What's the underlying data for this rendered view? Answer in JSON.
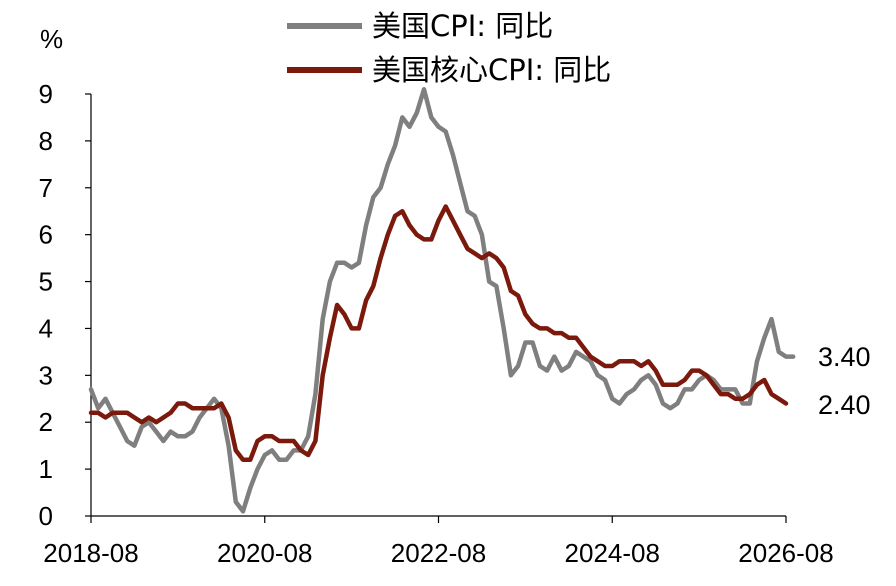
{
  "chart_data": {
    "type": "line",
    "ylabel": "%",
    "ylim": [
      0,
      9
    ],
    "yticks": [
      0,
      1,
      2,
      3,
      4,
      5,
      6,
      7,
      8,
      9
    ],
    "x_tick_labels": [
      "2018-08",
      "2020-08",
      "2022-08",
      "2024-08",
      "2026-08"
    ],
    "x_start": "2018-08",
    "x_end": "2026-08",
    "legend_position": "top-center",
    "grid": false,
    "series": [
      {
        "name": "美国CPI: 同比",
        "color": "#7f7f7f",
        "end_label": "3.40",
        "values": [
          [
            "2018-08",
            2.7
          ],
          [
            "2018-09",
            2.3
          ],
          [
            "2018-10",
            2.5
          ],
          [
            "2018-11",
            2.2
          ],
          [
            "2018-12",
            1.9
          ],
          [
            "2019-01",
            1.6
          ],
          [
            "2019-02",
            1.5
          ],
          [
            "2019-03",
            1.9
          ],
          [
            "2019-04",
            2.0
          ],
          [
            "2019-05",
            1.8
          ],
          [
            "2019-06",
            1.6
          ],
          [
            "2019-07",
            1.8
          ],
          [
            "2019-08",
            1.7
          ],
          [
            "2019-09",
            1.7
          ],
          [
            "2019-10",
            1.8
          ],
          [
            "2019-11",
            2.1
          ],
          [
            "2019-12",
            2.3
          ],
          [
            "2020-01",
            2.5
          ],
          [
            "2020-02",
            2.3
          ],
          [
            "2020-03",
            1.5
          ],
          [
            "2020-04",
            0.3
          ],
          [
            "2020-05",
            0.1
          ],
          [
            "2020-06",
            0.6
          ],
          [
            "2020-07",
            1.0
          ],
          [
            "2020-08",
            1.3
          ],
          [
            "2020-09",
            1.4
          ],
          [
            "2020-10",
            1.2
          ],
          [
            "2020-11",
            1.2
          ],
          [
            "2020-12",
            1.4
          ],
          [
            "2021-01",
            1.4
          ],
          [
            "2021-02",
            1.7
          ],
          [
            "2021-03",
            2.6
          ],
          [
            "2021-04",
            4.2
          ],
          [
            "2021-05",
            5.0
          ],
          [
            "2021-06",
            5.4
          ],
          [
            "2021-07",
            5.4
          ],
          [
            "2021-08",
            5.3
          ],
          [
            "2021-09",
            5.4
          ],
          [
            "2021-10",
            6.2
          ],
          [
            "2021-11",
            6.8
          ],
          [
            "2021-12",
            7.0
          ],
          [
            "2022-01",
            7.5
          ],
          [
            "2022-02",
            7.9
          ],
          [
            "2022-03",
            8.5
          ],
          [
            "2022-04",
            8.3
          ],
          [
            "2022-05",
            8.6
          ],
          [
            "2022-06",
            9.1
          ],
          [
            "2022-07",
            8.5
          ],
          [
            "2022-08",
            8.3
          ],
          [
            "2022-09",
            8.2
          ],
          [
            "2022-10",
            7.7
          ],
          [
            "2022-11",
            7.1
          ],
          [
            "2022-12",
            6.5
          ],
          [
            "2023-01",
            6.4
          ],
          [
            "2023-02",
            6.0
          ],
          [
            "2023-03",
            5.0
          ],
          [
            "2023-04",
            4.9
          ],
          [
            "2023-05",
            4.0
          ],
          [
            "2023-06",
            3.0
          ],
          [
            "2023-07",
            3.2
          ],
          [
            "2023-08",
            3.7
          ],
          [
            "2023-09",
            3.7
          ],
          [
            "2023-10",
            3.2
          ],
          [
            "2023-11",
            3.1
          ],
          [
            "2023-12",
            3.4
          ],
          [
            "2024-01",
            3.1
          ],
          [
            "2024-02",
            3.2
          ],
          [
            "2024-03",
            3.5
          ],
          [
            "2024-04",
            3.4
          ],
          [
            "2024-05",
            3.3
          ],
          [
            "2024-06",
            3.0
          ],
          [
            "2024-07",
            2.9
          ],
          [
            "2024-08",
            2.5
          ],
          [
            "2024-09",
            2.4
          ],
          [
            "2024-10",
            2.6
          ],
          [
            "2024-11",
            2.7
          ],
          [
            "2024-12",
            2.9
          ],
          [
            "2025-01",
            3.0
          ],
          [
            "2025-02",
            2.8
          ],
          [
            "2025-03",
            2.4
          ],
          [
            "2025-04",
            2.3
          ],
          [
            "2025-05",
            2.4
          ],
          [
            "2025-06",
            2.7
          ],
          [
            "2025-07",
            2.7
          ],
          [
            "2025-08",
            2.9
          ],
          [
            "2025-09",
            3.0
          ],
          [
            "2025-10",
            2.9
          ],
          [
            "2025-11",
            2.7
          ],
          [
            "2025-12",
            2.7
          ],
          [
            "2026-01",
            2.7
          ],
          [
            "2026-02",
            2.4
          ],
          [
            "2026-03",
            2.4
          ],
          [
            "2026-04",
            3.3
          ],
          [
            "2026-05",
            3.8
          ],
          [
            "2026-06",
            4.2
          ],
          [
            "2026-07",
            3.5
          ],
          [
            "2026-08",
            3.4
          ],
          [
            "2026-09",
            3.4
          ]
        ]
      },
      {
        "name": "美国核心CPI: 同比",
        "color": "#7b1a0c",
        "end_label": "2.40",
        "values": [
          [
            "2018-08",
            2.2
          ],
          [
            "2018-09",
            2.2
          ],
          [
            "2018-10",
            2.1
          ],
          [
            "2018-11",
            2.2
          ],
          [
            "2018-12",
            2.2
          ],
          [
            "2019-01",
            2.2
          ],
          [
            "2019-02",
            2.1
          ],
          [
            "2019-03",
            2.0
          ],
          [
            "2019-04",
            2.1
          ],
          [
            "2019-05",
            2.0
          ],
          [
            "2019-06",
            2.1
          ],
          [
            "2019-07",
            2.2
          ],
          [
            "2019-08",
            2.4
          ],
          [
            "2019-09",
            2.4
          ],
          [
            "2019-10",
            2.3
          ],
          [
            "2019-11",
            2.3
          ],
          [
            "2019-12",
            2.3
          ],
          [
            "2020-01",
            2.3
          ],
          [
            "2020-02",
            2.4
          ],
          [
            "2020-03",
            2.1
          ],
          [
            "2020-04",
            1.4
          ],
          [
            "2020-05",
            1.2
          ],
          [
            "2020-06",
            1.2
          ],
          [
            "2020-07",
            1.6
          ],
          [
            "2020-08",
            1.7
          ],
          [
            "2020-09",
            1.7
          ],
          [
            "2020-10",
            1.6
          ],
          [
            "2020-11",
            1.6
          ],
          [
            "2020-12",
            1.6
          ],
          [
            "2021-01",
            1.4
          ],
          [
            "2021-02",
            1.3
          ],
          [
            "2021-03",
            1.6
          ],
          [
            "2021-04",
            3.0
          ],
          [
            "2021-05",
            3.8
          ],
          [
            "2021-06",
            4.5
          ],
          [
            "2021-07",
            4.3
          ],
          [
            "2021-08",
            4.0
          ],
          [
            "2021-09",
            4.0
          ],
          [
            "2021-10",
            4.6
          ],
          [
            "2021-11",
            4.9
          ],
          [
            "2021-12",
            5.5
          ],
          [
            "2022-01",
            6.0
          ],
          [
            "2022-02",
            6.4
          ],
          [
            "2022-03",
            6.5
          ],
          [
            "2022-04",
            6.2
          ],
          [
            "2022-05",
            6.0
          ],
          [
            "2022-06",
            5.9
          ],
          [
            "2022-07",
            5.9
          ],
          [
            "2022-08",
            6.3
          ],
          [
            "2022-09",
            6.6
          ],
          [
            "2022-10",
            6.3
          ],
          [
            "2022-11",
            6.0
          ],
          [
            "2022-12",
            5.7
          ],
          [
            "2023-01",
            5.6
          ],
          [
            "2023-02",
            5.5
          ],
          [
            "2023-03",
            5.6
          ],
          [
            "2023-04",
            5.5
          ],
          [
            "2023-05",
            5.3
          ],
          [
            "2023-06",
            4.8
          ],
          [
            "2023-07",
            4.7
          ],
          [
            "2023-08",
            4.3
          ],
          [
            "2023-09",
            4.1
          ],
          [
            "2023-10",
            4.0
          ],
          [
            "2023-11",
            4.0
          ],
          [
            "2023-12",
            3.9
          ],
          [
            "2024-01",
            3.9
          ],
          [
            "2024-02",
            3.8
          ],
          [
            "2024-03",
            3.8
          ],
          [
            "2024-04",
            3.6
          ],
          [
            "2024-05",
            3.4
          ],
          [
            "2024-06",
            3.3
          ],
          [
            "2024-07",
            3.2
          ],
          [
            "2024-08",
            3.2
          ],
          [
            "2024-09",
            3.3
          ],
          [
            "2024-10",
            3.3
          ],
          [
            "2024-11",
            3.3
          ],
          [
            "2024-12",
            3.2
          ],
          [
            "2025-01",
            3.3
          ],
          [
            "2025-02",
            3.1
          ],
          [
            "2025-03",
            2.8
          ],
          [
            "2025-04",
            2.8
          ],
          [
            "2025-05",
            2.8
          ],
          [
            "2025-06",
            2.9
          ],
          [
            "2025-07",
            3.1
          ],
          [
            "2025-08",
            3.1
          ],
          [
            "2025-09",
            3.0
          ],
          [
            "2025-10",
            2.8
          ],
          [
            "2025-11",
            2.6
          ],
          [
            "2025-12",
            2.6
          ],
          [
            "2026-01",
            2.5
          ],
          [
            "2026-02",
            2.5
          ],
          [
            "2026-03",
            2.6
          ],
          [
            "2026-04",
            2.8
          ],
          [
            "2026-05",
            2.9
          ],
          [
            "2026-06",
            2.6
          ],
          [
            "2026-07",
            2.5
          ],
          [
            "2026-08",
            2.4
          ]
        ]
      }
    ]
  }
}
